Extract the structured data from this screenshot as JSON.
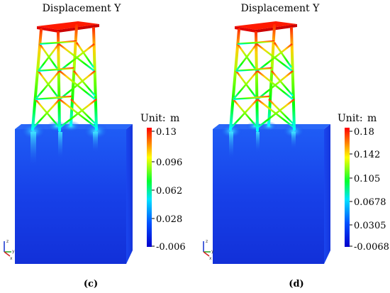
{
  "panels": [
    {
      "title": "Displacement Y",
      "caption": "(c)",
      "colorbar": {
        "unit_label": "Unit:",
        "unit": "m",
        "ticks": [
          "0.13",
          "0.096",
          "0.062",
          "0.028",
          "-0.006"
        ]
      }
    },
    {
      "title": "Displacement Y",
      "caption": "(d)",
      "colorbar": {
        "unit_label": "Unit:",
        "unit": "m",
        "ticks": [
          "0.18",
          "0.142",
          "0.105",
          "0.0678",
          "0.0305",
          "-0.0068"
        ]
      }
    }
  ],
  "axis_triad": {
    "x": "x",
    "y": "y",
    "z": "z"
  },
  "colors": {
    "max": "#ff0000",
    "mid_high": "#ffff00",
    "mid": "#00ff00",
    "mid_low": "#00ffff",
    "min": "#1020e0",
    "soil": "#1a3fe6"
  },
  "icons": [
    "axis-triad-icon"
  ]
}
